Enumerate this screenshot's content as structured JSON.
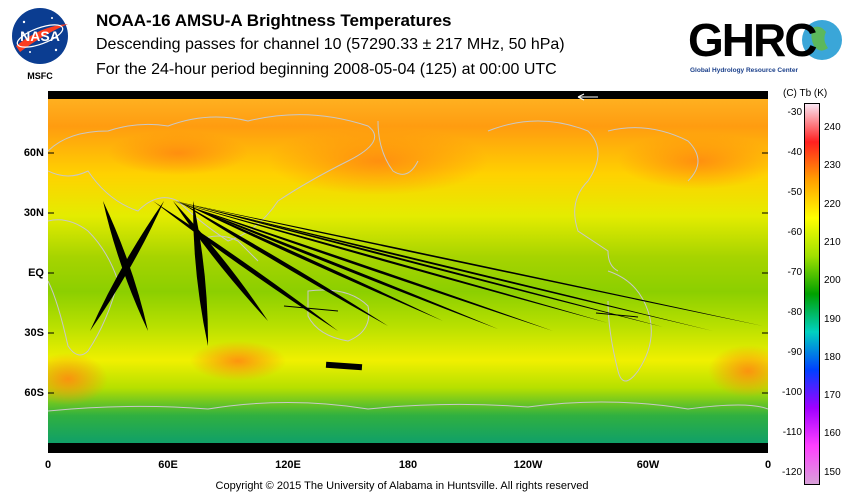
{
  "logos": {
    "nasa_text": "NASA",
    "nasa_sub": "MSFC",
    "ghrc_text": "GHRC",
    "ghrc_sub": "Global Hydrology Resource Center"
  },
  "header": {
    "title": "NOAA-16 AMSU-A Brightness Temperatures",
    "subtitle": "Descending passes for channel 10 (57290.33 ± 217 MHz, 50 hPa)",
    "period": "For the 24-hour period beginning 2008-05-04 (125) at 00:00 UTC"
  },
  "map": {
    "lat_labels": [
      "60N",
      "30N",
      "EQ",
      "30S",
      "60S"
    ],
    "lon_labels": [
      "0",
      "60E",
      "120E",
      "180",
      "120W",
      "60W",
      "0"
    ]
  },
  "colorbar": {
    "header": "(C)  Tb  (K)",
    "celsius_ticks": [
      "-30",
      "-40",
      "-50",
      "-60",
      "-70",
      "-80",
      "-90",
      "-100",
      "-110",
      "-120"
    ],
    "kelvin_ticks": [
      "240",
      "230",
      "220",
      "210",
      "200",
      "190",
      "180",
      "170",
      "160",
      "150"
    ],
    "colors": [
      "#f9e6f3",
      "#ff2020",
      "#ffa000",
      "#ffff00",
      "#a0e000",
      "#00a000",
      "#00d0c0",
      "#0040ff",
      "#a000ff",
      "#ff40ff",
      "#d8a0d8"
    ]
  },
  "footer": {
    "copyright": "Copyright © 2015 The University of Alabama in Huntsville.  All rights reserved"
  }
}
